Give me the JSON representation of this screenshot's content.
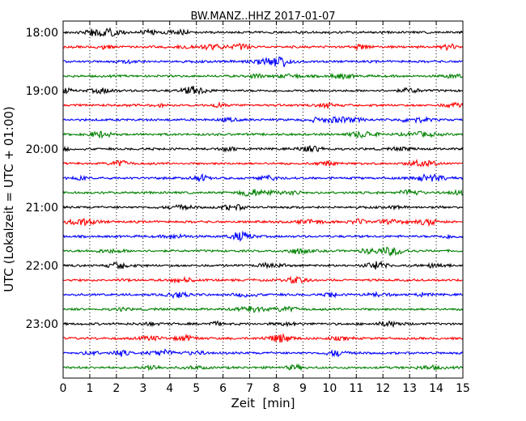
{
  "chart_data": {
    "type": "line",
    "title": "BW.MANZ..HHZ 2017-01-07",
    "xlabel": "Zeit  [min]",
    "ylabel": "UTC (Lokalzeit = UTC + 01:00)",
    "xlim": [
      0,
      15
    ],
    "x_ticks": [
      "0",
      "1",
      "2",
      "3",
      "4",
      "5",
      "6",
      "7",
      "8",
      "9",
      "10",
      "11",
      "12",
      "13",
      "14",
      "15"
    ],
    "y_ticks": [
      "18:00",
      "19:00",
      "20:00",
      "21:00",
      "22:00",
      "23:00"
    ],
    "grid": "vertical dotted",
    "trace_start_hour": 18,
    "traces_per_hour": 4,
    "trace_count": 24,
    "trace_colors": [
      "#000000",
      "#ff0000",
      "#0000ff",
      "#008000"
    ]
  }
}
